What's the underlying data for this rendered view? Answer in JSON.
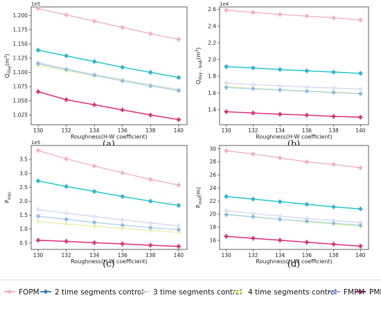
{
  "chart_data": [
    {
      "type": "line",
      "panel": "(a)",
      "xlabel": "Roughness(H-W coefficient)",
      "ylabel": "Q_day(m^3)",
      "ylabel_main": "Q",
      "ylabel_sub": "day",
      "ylabel_unit_open": "(m",
      "ylabel_unit_sup": "3",
      "ylabel_unit_close": ")",
      "exponent": "1e5",
      "x": [
        130,
        132,
        134,
        136,
        138,
        140
      ],
      "xlim": [
        129.5,
        140.6
      ],
      "ylim": [
        1.008,
        1.215
      ],
      "yticks": [
        "1.025",
        "1.050",
        "1.075",
        "1.100",
        "1.125",
        "1.150",
        "1.175",
        "1.200"
      ],
      "ytick_values": [
        1.025,
        1.05,
        1.075,
        1.1,
        1.125,
        1.15,
        1.175,
        1.2
      ],
      "xticks": [
        "130",
        "132",
        "134",
        "136",
        "138",
        "140"
      ],
      "series": [
        {
          "name": "FOPM",
          "values": [
            1.212,
            1.201,
            1.19,
            1.179,
            1.168,
            1.158
          ]
        },
        {
          "name": "2 time segments control",
          "values": [
            1.139,
            1.129,
            1.119,
            1.109,
            1.1,
            1.091
          ]
        },
        {
          "name": "3 time segments control",
          "values": [
            1.117,
            1.106,
            1.096,
            1.087,
            1.078,
            1.07
          ]
        },
        {
          "name": "4 time segments control",
          "values": [
            1.112,
            1.103,
            1.094,
            1.086,
            1.077,
            1.067
          ]
        },
        {
          "name": "FMPM",
          "values": [
            1.115,
            1.105,
            1.095,
            1.085,
            1.076,
            1.068
          ]
        },
        {
          "name": "PMPM",
          "values": [
            1.066,
            1.052,
            1.043,
            1.034,
            1.025,
            1.017
          ]
        }
      ]
    },
    {
      "type": "line",
      "panel": "(b)",
      "xlabel": "Roughness(H-W coefficient)",
      "ylabel": "Q_day-leak(m^3)",
      "ylabel_main": "Q",
      "ylabel_sub": "day - leak",
      "ylabel_unit_open": "(m",
      "ylabel_unit_sup": "3",
      "ylabel_unit_close": ")",
      "exponent": "1e4",
      "x": [
        130,
        132,
        134,
        136,
        138,
        140
      ],
      "xlim": [
        129.5,
        140.6
      ],
      "ylim": [
        1.22,
        2.63
      ],
      "yticks": [
        "1.4",
        "1.6",
        "1.8",
        "2.0",
        "2.2",
        "2.4",
        "2.6"
      ],
      "ytick_values": [
        1.4,
        1.6,
        1.8,
        2.0,
        2.2,
        2.4,
        2.6
      ],
      "xticks": [
        "130",
        "132",
        "134",
        "136",
        "138",
        "140"
      ],
      "series": [
        {
          "name": "FOPM",
          "values": [
            2.59,
            2.565,
            2.54,
            2.52,
            2.5,
            2.475
          ]
        },
        {
          "name": "2 time segments control",
          "values": [
            1.915,
            1.9,
            1.88,
            1.865,
            1.85,
            1.835
          ]
        },
        {
          "name": "3 time segments control",
          "values": [
            1.72,
            1.7,
            1.685,
            1.67,
            1.66,
            1.645
          ]
        },
        {
          "name": "4 time segments control",
          "values": [
            1.675,
            1.655,
            1.64,
            1.625,
            1.61,
            1.595
          ]
        },
        {
          "name": "FMPM",
          "values": [
            1.665,
            1.65,
            1.635,
            1.62,
            1.605,
            1.59
          ]
        },
        {
          "name": "PMPM",
          "values": [
            1.375,
            1.36,
            1.345,
            1.335,
            1.32,
            1.31
          ]
        }
      ]
    },
    {
      "type": "line",
      "panel": "(c)",
      "xlabel": "Roughness(H-W coefficient)",
      "ylabel": "P_equ",
      "ylabel_main": "P",
      "ylabel_sub": "equ",
      "ylabel_unit_open": "",
      "ylabel_unit_sup": "",
      "ylabel_unit_close": "",
      "exponent": "1e5",
      "x": [
        130,
        132,
        134,
        136,
        138,
        140
      ],
      "xlim": [
        129.5,
        140.6
      ],
      "ylim": [
        0.27,
        4.0
      ],
      "yticks": [
        "0.5",
        "1.0",
        "1.5",
        "2.0",
        "2.5",
        "3.0",
        "3.5"
      ],
      "ytick_values": [
        0.5,
        1.0,
        1.5,
        2.0,
        2.5,
        3.0,
        3.5
      ],
      "xticks": [
        "130",
        "132",
        "134",
        "136",
        "138",
        "140"
      ],
      "series": [
        {
          "name": "FOPM",
          "values": [
            3.82,
            3.52,
            3.26,
            3.02,
            2.78,
            2.58
          ]
        },
        {
          "name": "2 time segments control",
          "values": [
            2.73,
            2.53,
            2.35,
            2.17,
            2.0,
            1.85
          ]
        },
        {
          "name": "3 time segments control",
          "values": [
            1.7,
            1.57,
            1.45,
            1.33,
            1.22,
            1.12
          ]
        },
        {
          "name": "4 time segments control",
          "values": [
            1.27,
            1.18,
            1.1,
            1.02,
            0.95,
            0.88
          ]
        },
        {
          "name": "FMPM",
          "values": [
            1.46,
            1.35,
            1.24,
            1.14,
            1.05,
            0.98
          ]
        },
        {
          "name": "PMPM",
          "values": [
            0.6,
            0.56,
            0.51,
            0.47,
            0.42,
            0.38
          ]
        }
      ]
    },
    {
      "type": "line",
      "panel": "(d)",
      "xlabel": "Roughness(H-W coefficient)",
      "ylabel": "P_mid(m)",
      "ylabel_main": "P",
      "ylabel_sub": "mid",
      "ylabel_unit_open": "(m)",
      "ylabel_unit_sup": "",
      "ylabel_unit_close": "",
      "exponent": "",
      "x": [
        130,
        132,
        134,
        136,
        138,
        140
      ],
      "xlim": [
        129.5,
        140.6
      ],
      "ylim": [
        14.6,
        30.5
      ],
      "yticks": [
        "16",
        "18",
        "20",
        "22",
        "24",
        "26",
        "28",
        "30"
      ],
      "ytick_values": [
        16,
        18,
        20,
        22,
        24,
        26,
        28,
        30
      ],
      "xticks": [
        "130",
        "132",
        "134",
        "136",
        "138",
        "140"
      ],
      "series": [
        {
          "name": "FOPM",
          "values": [
            29.7,
            29.2,
            28.6,
            28.0,
            27.6,
            27.1
          ]
        },
        {
          "name": "2 time segments control",
          "values": [
            22.7,
            22.3,
            21.9,
            21.5,
            21.1,
            20.8
          ]
        },
        {
          "name": "3 time segments control",
          "values": [
            20.5,
            20.1,
            19.7,
            19.3,
            19.0,
            18.7
          ]
        },
        {
          "name": "4 time segments control",
          "values": [
            20.0,
            19.6,
            19.2,
            18.8,
            18.5,
            18.1
          ]
        },
        {
          "name": "FMPM",
          "values": [
            19.9,
            19.6,
            19.2,
            18.9,
            18.6,
            18.3
          ]
        },
        {
          "name": "PMPM",
          "values": [
            16.6,
            16.3,
            16.0,
            15.7,
            15.4,
            15.1
          ]
        }
      ]
    }
  ],
  "legend": {
    "placement": "bottom",
    "items": [
      {
        "name": "FOPM",
        "color": "#f2aeba",
        "marker": "plus"
      },
      {
        "name": "2 time segments control",
        "color": "#3f7fb7",
        "marker": "diamond"
      },
      {
        "name": "3 time segments control",
        "color": "#cfd6ef",
        "marker": "plus"
      },
      {
        "name": "4 time segments control",
        "color": "#f7f79a",
        "marker": "plus"
      },
      {
        "name": "FMPM",
        "color": "#92a6e6",
        "marker": "diamond"
      },
      {
        "name": "PMPM",
        "color": "#7b2555",
        "marker": "plus"
      }
    ]
  },
  "series_style": [
    {
      "color": "#f2aeba",
      "marker_fill": "#f2aeba"
    },
    {
      "color": "#20c7c7",
      "marker_fill": "#4aa7cc"
    },
    {
      "color": "#cfd6ef",
      "marker_fill": "#dfe5f7"
    },
    {
      "color": "#e2f0a6",
      "marker_fill": "#eef5b3"
    },
    {
      "color": "#a9d2e0",
      "marker_fill": "#8fb6e6"
    },
    {
      "color": "#e0297a",
      "marker_fill": "#c43a78"
    }
  ]
}
